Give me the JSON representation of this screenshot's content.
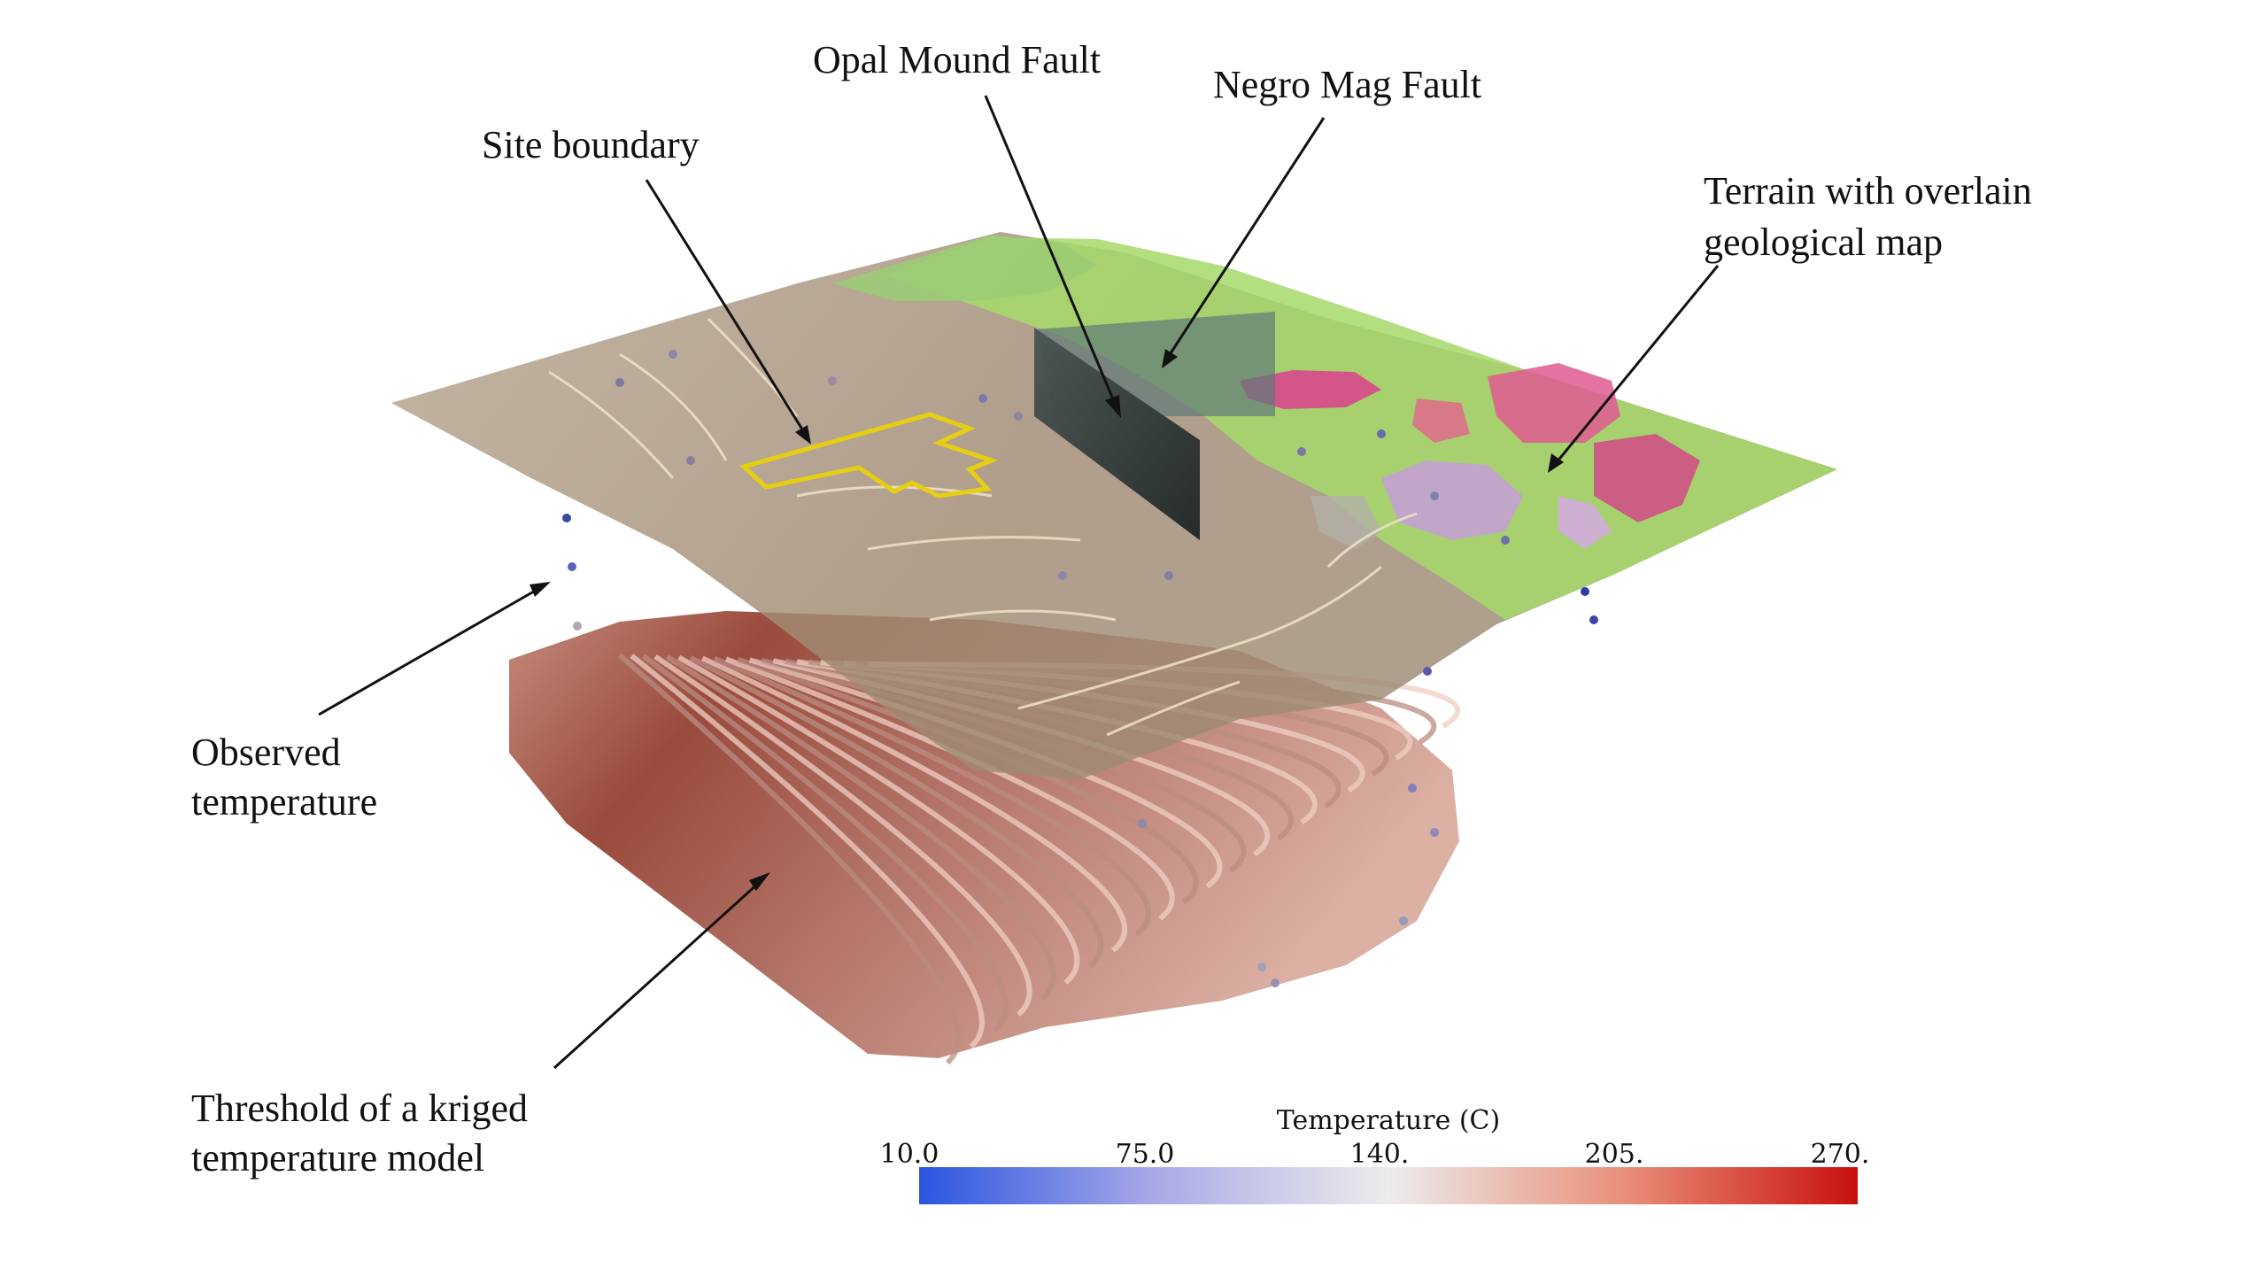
{
  "annotations": {
    "opal_mound_fault": "Opal Mound Fault",
    "negro_mag_fault": "Negro Mag Fault",
    "site_boundary": "Site boundary",
    "terrain_line1": "Terrain with overlain",
    "terrain_line2": "geological map",
    "observed_line1": "Observed",
    "observed_line2": "temperature",
    "threshold_line1": "Threshold of a kriged",
    "threshold_line2": "temperature model"
  },
  "colorbar": {
    "title": "Temperature (C)",
    "ticks": [
      "10.0",
      "75.0",
      "140.",
      "205.",
      "270."
    ],
    "min": 10.0,
    "max": 270.0,
    "color_low": "#2a55e0",
    "color_mid": "#ececec",
    "color_high": "#c8100e"
  },
  "colors": {
    "terrain_tan": "#a8957e",
    "geology_green": "#a6d96a",
    "geology_magenta": "#d9488c",
    "geology_violet": "#c89be0",
    "model_block": "#d8a898",
    "model_core": "#a0483a",
    "site_boundary_line": "#e6cf12",
    "fault_plane": "#2f3a38"
  }
}
